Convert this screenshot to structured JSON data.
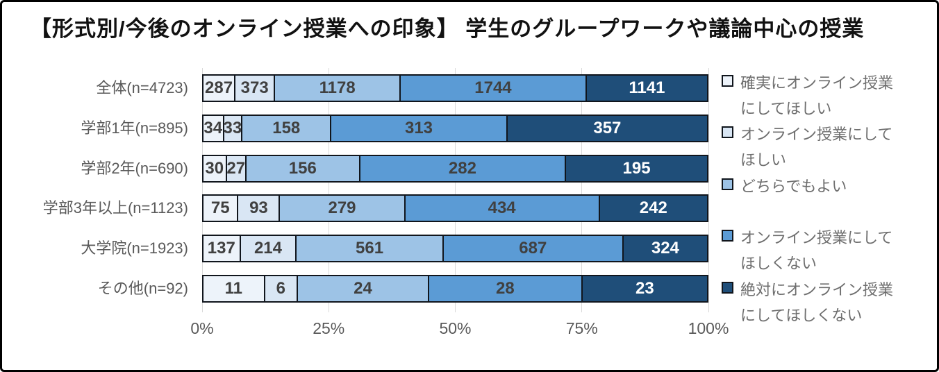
{
  "title": "【形式別/今後のオンライン授業への印象】 学生のグループワークや議論中心の授業",
  "chart_data": {
    "type": "bar",
    "variant": "stacked-100-horizontal",
    "title": "【形式別/今後のオンライン授業への印象】 学生のグループワークや議論中心の授業",
    "categories": [
      "全体(n=4723)",
      "学部1年(n=895)",
      "学部2年(n=690)",
      "学部3年以上(n=1123)",
      "大学院(n=1923)",
      "その他(n=92)"
    ],
    "totals": [
      4723,
      895,
      690,
      1123,
      1923,
      92
    ],
    "series": [
      {
        "name": "確実にオンライン授業にしてほしい",
        "color": "#EDF3FA",
        "label_color": "#404040",
        "values": [
          287,
          34,
          30,
          75,
          137,
          11
        ]
      },
      {
        "name": "オンライン授業にしてほしい",
        "color": "#D9E6F4",
        "label_color": "#404040",
        "values": [
          373,
          33,
          27,
          93,
          214,
          6
        ]
      },
      {
        "name": "どちらでもよい",
        "color": "#9DC3E6",
        "label_color": "#404040",
        "values": [
          1178,
          158,
          156,
          279,
          561,
          24
        ]
      },
      {
        "name": "オンライン授業にしてほしくない",
        "color": "#5B9BD5",
        "label_color": "#404040",
        "values": [
          1744,
          313,
          282,
          434,
          687,
          28
        ]
      },
      {
        "name": "絶対にオンライン授業にしてほしくない",
        "color": "#1F4E79",
        "label_color": "#FFFFFF",
        "values": [
          1141,
          357,
          195,
          242,
          324,
          23
        ]
      }
    ],
    "x_ticks": [
      "0%",
      "25%",
      "50%",
      "75%",
      "100%"
    ],
    "xlim": [
      0,
      100
    ],
    "grid": true,
    "legend_position": "right"
  },
  "colors": {
    "grid": "#D9D9D9",
    "bar_border": "#10151C",
    "axis_text": "#595959",
    "legend_text": "#6E6E6E",
    "title_text": "#111111",
    "background": "#FFFFFF",
    "frame_border": "#000000"
  }
}
